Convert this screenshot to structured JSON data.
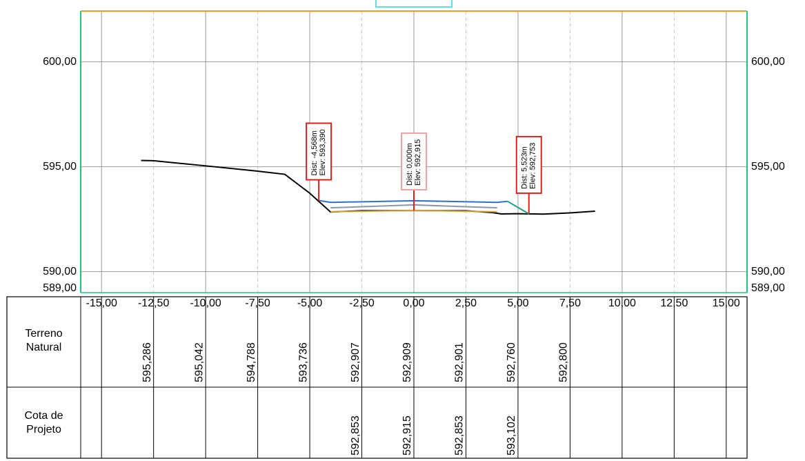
{
  "chart_data": {
    "type": "cross-section",
    "xlim": [
      -16,
      16
    ],
    "ylim": [
      589,
      602.42
    ],
    "xticks": [
      {
        "value": -15,
        "label": "-15,00"
      },
      {
        "value": -12.5,
        "label": "-12,50"
      },
      {
        "value": -10,
        "label": "-10,00"
      },
      {
        "value": -7.5,
        "label": "-7,50"
      },
      {
        "value": -5,
        "label": "-5,00"
      },
      {
        "value": -2.5,
        "label": "-2,50"
      },
      {
        "value": 0,
        "label": "0,00"
      },
      {
        "value": 2.5,
        "label": "2,50"
      },
      {
        "value": 5,
        "label": "5,00"
      },
      {
        "value": 7.5,
        "label": "7,50"
      },
      {
        "value": 10,
        "label": "10,00"
      },
      {
        "value": 12.5,
        "label": "12,50"
      },
      {
        "value": 15,
        "label": "15,00"
      }
    ],
    "yticks": [
      {
        "value": 589,
        "label": "589,00"
      },
      {
        "value": 590,
        "label": "590,00"
      },
      {
        "value": 595,
        "label": "595,00"
      },
      {
        "value": 600,
        "label": "600,00"
      }
    ],
    "grid": true,
    "series": [
      {
        "color": "#000000",
        "x": [
          -13.1,
          -12.5,
          -10,
          -7.5,
          -6.2,
          -5,
          -4.0,
          -2.5,
          0,
          2.5,
          3.8,
          4.2,
          5,
          5.523,
          6.2,
          7.5,
          8.7
        ],
        "values": [
          595.3,
          595.286,
          595.042,
          594.788,
          594.64,
          593.736,
          592.84,
          592.907,
          592.909,
          592.901,
          592.81,
          592.75,
          592.76,
          592.753,
          592.74,
          592.8,
          592.88
        ]
      },
      {
        "color": "#8a96a8",
        "x": [
          -4.0,
          0,
          4.0
        ],
        "values": [
          593.04,
          593.18,
          593.04
        ]
      },
      {
        "color": "#d8a030",
        "x": [
          -4.0,
          0,
          4.0
        ],
        "values": [
          592.853,
          592.915,
          592.853
        ]
      },
      {
        "color": "#2e6fd0",
        "x": [
          -4.568,
          -4.0,
          0,
          4.0,
          4.5
        ],
        "values": [
          593.39,
          593.3,
          593.38,
          593.3,
          593.35
        ]
      },
      {
        "color": "#1aa58a",
        "x": [
          4.5,
          5.523
        ],
        "values": [
          593.35,
          592.753
        ]
      }
    ],
    "annotations": [
      {
        "x": -4.568,
        "y": 593.39,
        "lines": [
          "Dist: -4,568m",
          "Elev: 593,390"
        ],
        "color": "#e0201b"
      },
      {
        "x": 0,
        "y": 592.915,
        "lines": [
          "Dist: 0,000m",
          "Elev: 592,915"
        ],
        "color": "#f2a0a0"
      },
      {
        "x": 5.523,
        "y": 592.753,
        "lines": [
          "Dist: 5,523m",
          "Elev: 592,753"
        ],
        "color": "#e0201b"
      }
    ]
  },
  "table": {
    "stations": [
      -12.5,
      -10,
      -7.5,
      -5,
      -2.5,
      0,
      2.5,
      5,
      7.5
    ],
    "rows": [
      {
        "label": "Terreno Natural",
        "values": [
          "595,286",
          "595,042",
          "594,788",
          "593,736",
          "592,907",
          "592,909",
          "592,901",
          "592,760",
          "592,800"
        ]
      },
      {
        "label": "Cota de Projeto",
        "values": [
          null,
          null,
          null,
          null,
          "592,853",
          "592,915",
          "592,853",
          "593,102",
          null
        ]
      }
    ]
  }
}
